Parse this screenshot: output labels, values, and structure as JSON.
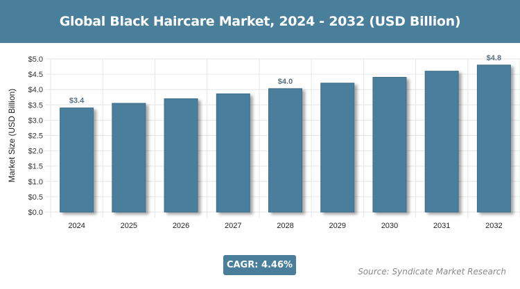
{
  "chart_data": {
    "type": "bar",
    "title": "Global Black Haircare Market, 2024 - 2032 (USD Billion)",
    "xlabel": "",
    "ylabel": "Market Size (USD Billion)",
    "categories": [
      "2024",
      "2025",
      "2026",
      "2027",
      "2028",
      "2029",
      "2030",
      "2031",
      "2032"
    ],
    "values": [
      3.4,
      3.55,
      3.7,
      3.86,
      4.03,
      4.21,
      4.4,
      4.6,
      4.8
    ],
    "data_labels": {
      "0": "$3.4",
      "4": "$4.0",
      "8": "$4.8"
    },
    "ylim": [
      0,
      5
    ],
    "yticks": [
      "$0.0",
      "$0.5",
      "$1.0",
      "$1.5",
      "$2.0",
      "$2.5",
      "$3.0",
      "$3.5",
      "$4.0",
      "$4.5",
      "$5.0"
    ],
    "grid": true,
    "bar_color": "#4a7f9c"
  },
  "cagr": "CAGR: 4.46%",
  "source": "Source: Syndicate Market Research"
}
